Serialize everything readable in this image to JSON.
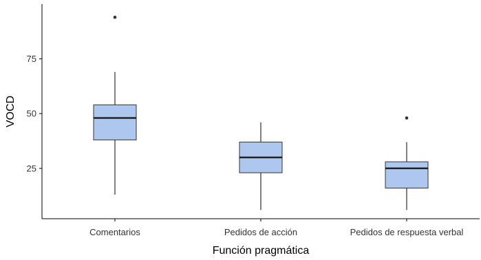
{
  "colors": {
    "box_fill": "#aec7ef",
    "box_stroke": "#333333",
    "axis": "#000000",
    "background": "#ffffff"
  },
  "chart_data": {
    "type": "boxplot",
    "xlabel": "Función pragmática",
    "ylabel": "VOCD",
    "ylim": [
      2,
      100
    ],
    "yticks": [
      25,
      50,
      75
    ],
    "grid": false,
    "legend": "none",
    "categories": [
      "Comentarios",
      "Pedidos de acción",
      "Pedidos de respuesta verbal"
    ],
    "boxes": [
      {
        "category": "Comentarios",
        "min": 13,
        "q1": 38,
        "median": 48,
        "q3": 54,
        "max": 69,
        "outliers": [
          94
        ]
      },
      {
        "category": "Pedidos de acción",
        "min": 6,
        "q1": 23,
        "median": 30,
        "q3": 37,
        "max": 46,
        "outliers": []
      },
      {
        "category": "Pedidos de respuesta verbal",
        "min": 6,
        "q1": 16,
        "median": 25,
        "q3": 28,
        "max": 37,
        "outliers": [
          48
        ]
      }
    ]
  }
}
